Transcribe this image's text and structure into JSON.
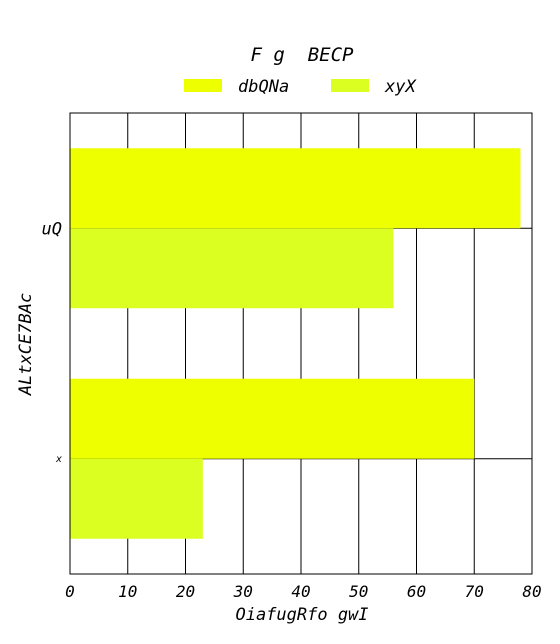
{
  "chart_data": {
    "type": "bar",
    "orientation": "horizontal",
    "title": "F g  BECP",
    "xlabel": "OiafugRfo gwI",
    "ylabel": "ALtxCE7BAc",
    "categories": [
      "uQ",
      "x"
    ],
    "series": [
      {
        "name": "dbQNa",
        "values": [
          78,
          70
        ],
        "color": "#eeff00"
      },
      {
        "name": "xyX",
        "values": [
          56,
          23
        ],
        "color": "#dcff22"
      }
    ],
    "xlim": [
      0,
      80
    ],
    "xticks": [
      "0",
      "10",
      "20",
      "30",
      "40",
      "50",
      "60",
      "70",
      "80"
    ],
    "grid": true,
    "legend_position": "top-center"
  }
}
